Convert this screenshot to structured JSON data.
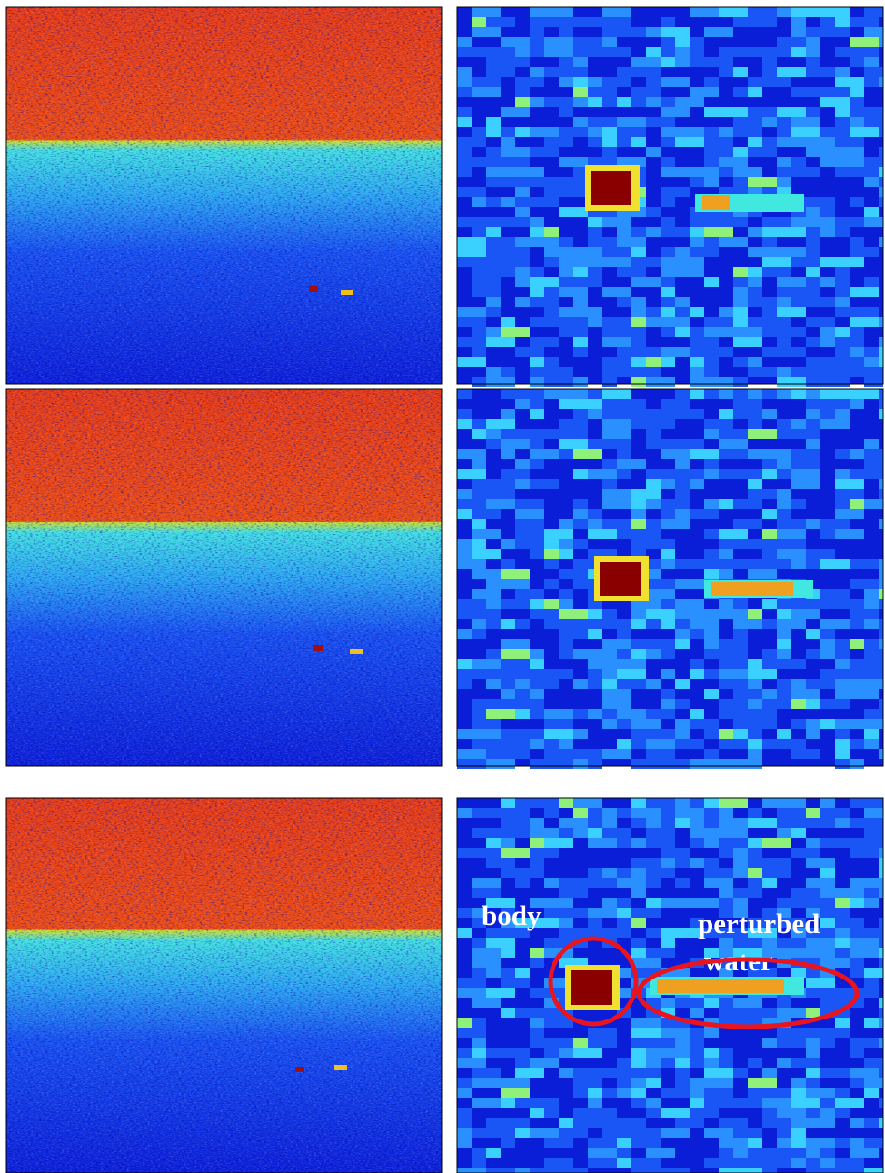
{
  "annotations": {
    "body": "body",
    "perturbed": "perturbed",
    "water": "water"
  }
}
